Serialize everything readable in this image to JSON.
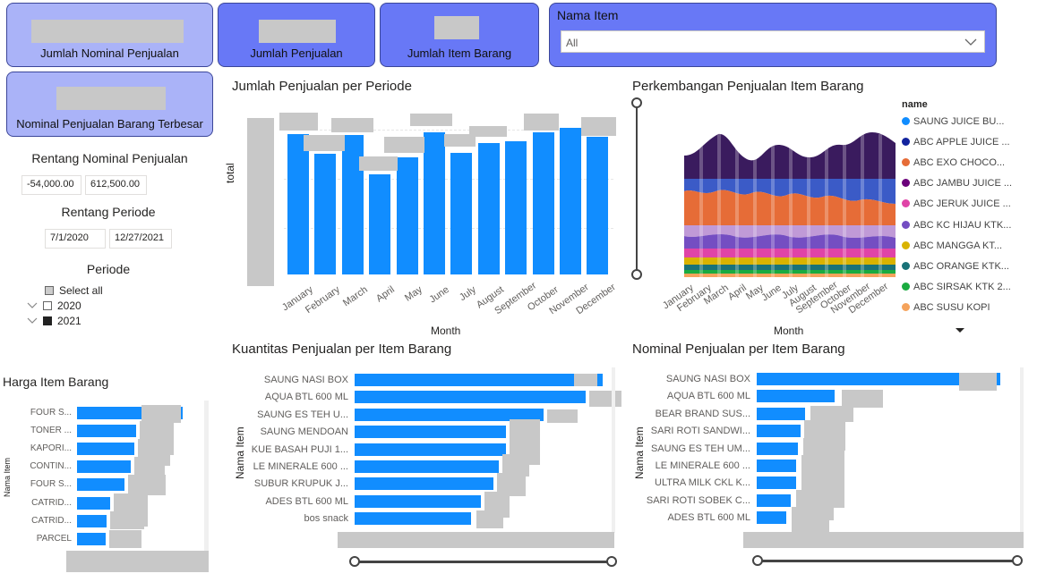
{
  "cards": {
    "jumlah_nominal": "Jumlah Nominal Penjualan",
    "jumlah_penjualan": "Jumlah Penjualan",
    "jumlah_item": "Jumlah Item Barang",
    "nominal_terbesar": "Nominal Penjualan Barang Terbesar"
  },
  "slicer_item": {
    "title": "Nama Item",
    "value": "All"
  },
  "range_nominal": {
    "title": "Rentang Nominal Penjualan",
    "min": "-54,000.00",
    "max": "612,500.00"
  },
  "range_periode": {
    "title": "Rentang Periode",
    "start": "7/1/2020",
    "end": "12/27/2021"
  },
  "periode": {
    "title": "Periode",
    "select_all": "Select all",
    "y2020": "2020",
    "y2021": "2021"
  },
  "colors": {
    "accent": "#118dff",
    "card_light": "#aab3f8",
    "card_dark": "#6878f6"
  },
  "chart_data": [
    {
      "type": "bar",
      "title": "Jumlah Penjualan per Periode",
      "xlabel": "Month",
      "ylabel": "total",
      "categories": [
        "January",
        "February",
        "March",
        "April",
        "May",
        "June",
        "July",
        "August",
        "September",
        "October",
        "November",
        "December"
      ],
      "values": [
        90,
        77,
        89,
        64,
        75,
        91,
        78,
        84,
        85,
        91,
        94,
        88
      ]
    },
    {
      "type": "area",
      "title": "Perkembangan Penjualan Item Barang",
      "xlabel": "Month",
      "categories": [
        "January",
        "February",
        "March",
        "April",
        "May",
        "June",
        "July",
        "August",
        "September",
        "October",
        "November",
        "December"
      ],
      "legend_title": "name",
      "legend": [
        {
          "name": "SAUNG JUICE BU...",
          "color": "#118dff"
        },
        {
          "name": "ABC APPLE  JUICE ...",
          "color": "#12239e"
        },
        {
          "name": "ABC EXO CHOCO...",
          "color": "#e66c37"
        },
        {
          "name": "ABC JAMBU JUICE ...",
          "color": "#6b007b"
        },
        {
          "name": "ABC JERUK JUICE ...",
          "color": "#e044a7"
        },
        {
          "name": "ABC KC HIJAU KTK...",
          "color": "#744ec2"
        },
        {
          "name": "ABC MANGGA KT...",
          "color": "#d9b300"
        },
        {
          "name": "ABC ORANGE KTK...",
          "color": "#197278"
        },
        {
          "name": "ABC SIRSAK KTK 2...",
          "color": "#1aab40"
        },
        {
          "name": "ABC SUSU KOPI",
          "color": "#f5a35c"
        }
      ]
    },
    {
      "type": "bar",
      "orientation": "horizontal",
      "title": "Kuantitas Penjualan per Item Barang",
      "ylabel": "Nama Item",
      "categories": [
        "SAUNG NASI BOX",
        "AQUA BTL 600 ML",
        "SAUNG ES TEH U...",
        "SAUNG MENDOAN",
        "KUE BASAH PUJI 1...",
        "LE MINERALE 600 ...",
        "SUBUR KRUPUK J...",
        "ADES BTL 600 ML",
        "bos snack"
      ],
      "values": [
        100,
        93,
        76,
        61,
        61,
        58,
        56,
        51,
        47
      ]
    },
    {
      "type": "bar",
      "orientation": "horizontal",
      "title": "Nominal Penjualan per Item Barang",
      "ylabel": "Nama Item",
      "categories": [
        "SAUNG NASI BOX",
        "AQUA BTL 600 ML",
        "BEAR BRAND SUS...",
        "SARI ROTI SANDWI...",
        "SAUNG ES TEH UM...",
        "LE MINERALE 600 ...",
        "ULTRA MILK CKL K...",
        "SARI ROTI SOBEK C...",
        "ADES BTL 600 ML"
      ],
      "values": [
        100,
        32,
        20,
        18,
        17,
        16,
        16,
        14,
        12
      ]
    },
    {
      "type": "bar",
      "orientation": "horizontal",
      "title": "Harga Item Barang",
      "ylabel": "Nama Item",
      "categories": [
        "FOUR S...",
        "TONER ...",
        "KAPORI...",
        "CONTIN...",
        "FOUR S...",
        "CATRID...",
        "CATRID...",
        "PARCEL"
      ],
      "values": [
        100,
        56,
        54,
        51,
        45,
        31,
        28,
        27
      ]
    }
  ]
}
